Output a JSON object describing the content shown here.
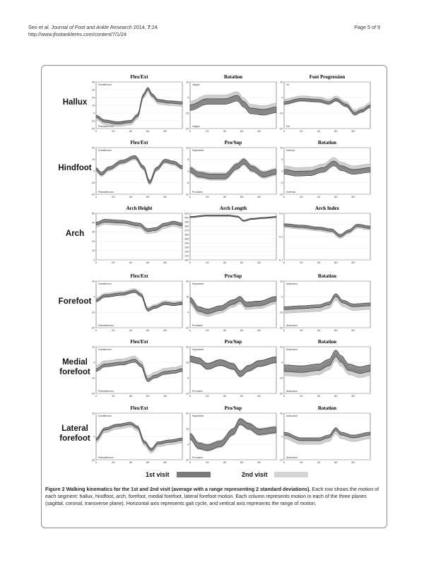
{
  "header": {
    "citation_authors": "Seo",
    "citation_etal": " et al. ",
    "citation_journal": "Journal of Foot and Ankle Research",
    "citation_year": " 2014, ",
    "citation_volume": "7",
    "citation_article": ":24",
    "url": "http://www.jfootankleres.com/content/7/1/24",
    "page": "Page 5 of 9"
  },
  "colors": {
    "visit1": "#7a7a7a",
    "visit2": "#cfcfcf",
    "line": "#3a3a3a"
  },
  "rows": [
    {
      "label": [
        "Hallux"
      ],
      "panels": [
        {
          "title": "Flex/Ext",
          "yticks": [
            "40",
            "30",
            "20",
            "10",
            "0",
            "-10",
            "-20"
          ],
          "top": "Dorsiflexion",
          "bottom": "Plantarflexion",
          "shape": [
            [
              0,
              0.74
            ],
            [
              0.1,
              0.84
            ],
            [
              0.25,
              0.88
            ],
            [
              0.4,
              0.85
            ],
            [
              0.48,
              0.72
            ],
            [
              0.55,
              0.28
            ],
            [
              0.6,
              0.14
            ],
            [
              0.65,
              0.28
            ],
            [
              0.72,
              0.4
            ],
            [
              0.85,
              0.43
            ],
            [
              1,
              0.45
            ]
          ],
          "w1": 0.05,
          "w2": 0.09,
          "d2": 0.03
        },
        {
          "title": "Rotation",
          "yticks": [
            "10",
            "0",
            "-10",
            "-20"
          ],
          "top": "Valgus",
          "bottom": "Valgus",
          "shape": [
            [
              0,
              0.55
            ],
            [
              0.2,
              0.42
            ],
            [
              0.4,
              0.42
            ],
            [
              0.55,
              0.35
            ],
            [
              0.62,
              0.48
            ],
            [
              0.7,
              0.62
            ],
            [
              0.85,
              0.65
            ],
            [
              1,
              0.6
            ]
          ],
          "w1": 0.12,
          "w2": 0.16,
          "d2": -0.06
        },
        {
          "title": "Foot Progression",
          "yticks": [
            "10",
            "0",
            "-10",
            "-20"
          ],
          "top": "Int",
          "bottom": "Ext",
          "shape": [
            [
              0,
              0.45
            ],
            [
              0.2,
              0.38
            ],
            [
              0.4,
              0.4
            ],
            [
              0.52,
              0.45
            ],
            [
              0.6,
              0.38
            ],
            [
              0.72,
              0.5
            ],
            [
              0.82,
              0.68
            ],
            [
              0.9,
              0.62
            ],
            [
              1,
              0.52
            ]
          ],
          "w1": 0.05,
          "w2": 0.12,
          "d2": -0.02
        }
      ]
    },
    {
      "label": [
        "Hindfoot"
      ],
      "panels": [
        {
          "title": "Flex/Ext",
          "yticks": [
            "20",
            "10",
            "0",
            "-10",
            "-20"
          ],
          "top": "Dorsiflexion",
          "bottom": "Plantarflexion",
          "shape": [
            [
              0,
              0.46
            ],
            [
              0.06,
              0.56
            ],
            [
              0.15,
              0.44
            ],
            [
              0.3,
              0.3
            ],
            [
              0.45,
              0.2
            ],
            [
              0.55,
              0.42
            ],
            [
              0.62,
              0.74
            ],
            [
              0.7,
              0.45
            ],
            [
              0.8,
              0.28
            ],
            [
              0.9,
              0.32
            ],
            [
              1,
              0.42
            ]
          ],
          "w1": 0.06,
          "w2": 0.08,
          "d2": 0.02
        },
        {
          "title": "Pro/Sup",
          "yticks": [
            "10",
            "5",
            "0",
            "-5",
            "-10"
          ],
          "top": "Supinated",
          "bottom": "Pronated",
          "shape": [
            [
              0,
              0.48
            ],
            [
              0.1,
              0.58
            ],
            [
              0.25,
              0.62
            ],
            [
              0.4,
              0.62
            ],
            [
              0.55,
              0.4
            ],
            [
              0.62,
              0.3
            ],
            [
              0.72,
              0.45
            ],
            [
              0.85,
              0.58
            ],
            [
              1,
              0.52
            ]
          ],
          "w1": 0.1,
          "w2": 0.16,
          "d2": 0
        },
        {
          "title": "Rotation",
          "yticks": [
            "10",
            "5",
            "0",
            "-5",
            "-10"
          ],
          "top": "Internal",
          "bottom": "External",
          "shape": [
            [
              0,
              0.52
            ],
            [
              0.15,
              0.56
            ],
            [
              0.3,
              0.55
            ],
            [
              0.45,
              0.48
            ],
            [
              0.58,
              0.34
            ],
            [
              0.66,
              0.44
            ],
            [
              0.8,
              0.52
            ],
            [
              1,
              0.48
            ]
          ],
          "w1": 0.1,
          "w2": 0.14,
          "d2": -0.06
        }
      ]
    },
    {
      "label": [
        "Arch"
      ],
      "panels": [
        {
          "title": "Arch Height",
          "yticks": [
            "50",
            "40",
            "30",
            "20",
            "10",
            "0"
          ],
          "top": "",
          "bottom": "",
          "shape": [
            [
              0,
              0.22
            ],
            [
              0.1,
              0.16
            ],
            [
              0.3,
              0.18
            ],
            [
              0.5,
              0.24
            ],
            [
              0.6,
              0.36
            ],
            [
              0.68,
              0.34
            ],
            [
              0.8,
              0.24
            ],
            [
              0.9,
              0.2
            ],
            [
              1,
              0.24
            ]
          ],
          "w1": 0.06,
          "w2": 0.08,
          "d2": 0.04
        },
        {
          "title": "Arch Length",
          "yticks": [
            "210",
            "200",
            "190",
            "180",
            "170",
            "160",
            "150",
            "140",
            "130",
            "120",
            "110",
            "100"
          ],
          "top": "",
          "bottom": "",
          "shape": [
            [
              0,
              0.08
            ],
            [
              0.2,
              0.05
            ],
            [
              0.45,
              0.05
            ],
            [
              0.55,
              0.07
            ],
            [
              0.62,
              0.16
            ],
            [
              0.72,
              0.12
            ],
            [
              0.85,
              0.1
            ],
            [
              1,
              0.08
            ]
          ],
          "w1": 0.02,
          "w2": 0.03,
          "d2": 0
        },
        {
          "title": "Arch Index",
          "yticks": [
            "0.3",
            "",
            "0.2",
            "",
            "0.1"
          ],
          "top": "",
          "bottom": "",
          "shape": [
            [
              0,
              0.25
            ],
            [
              0.2,
              0.28
            ],
            [
              0.4,
              0.32
            ],
            [
              0.55,
              0.36
            ],
            [
              0.65,
              0.48
            ],
            [
              0.75,
              0.38
            ],
            [
              0.85,
              0.26
            ],
            [
              1,
              0.3
            ]
          ],
          "w1": 0.05,
          "w2": 0.08,
          "d2": 0.02
        }
      ]
    },
    {
      "label": [
        "Forefoot"
      ],
      "panels": [
        {
          "title": "Flex/Ext",
          "yticks": [
            "10",
            "0",
            "-10",
            "-20"
          ],
          "top": "Dorsiflexion",
          "bottom": "Plantarflexion",
          "shape": [
            [
              0,
              0.42
            ],
            [
              0.1,
              0.32
            ],
            [
              0.3,
              0.28
            ],
            [
              0.45,
              0.22
            ],
            [
              0.52,
              0.3
            ],
            [
              0.6,
              0.62
            ],
            [
              0.68,
              0.56
            ],
            [
              0.8,
              0.48
            ],
            [
              0.9,
              0.5
            ],
            [
              1,
              0.48
            ]
          ],
          "w1": 0.05,
          "w2": 0.08,
          "d2": -0.02
        },
        {
          "title": "Pro/Sup",
          "yticks": [
            "20",
            "10",
            "0",
            "-10"
          ],
          "top": "Supinated",
          "bottom": "Pronated",
          "shape": [
            [
              0,
              0.4
            ],
            [
              0.1,
              0.6
            ],
            [
              0.2,
              0.65
            ],
            [
              0.35,
              0.58
            ],
            [
              0.5,
              0.45
            ],
            [
              0.58,
              0.38
            ],
            [
              0.65,
              0.5
            ],
            [
              0.8,
              0.48
            ],
            [
              1,
              0.38
            ]
          ],
          "w1": 0.1,
          "w2": 0.16,
          "d2": 0.03
        },
        {
          "title": "Rotation",
          "yticks": [
            "10",
            "0",
            "-10",
            "-20"
          ],
          "top": "Adduction",
          "bottom": "Abduction",
          "shape": [
            [
              0,
              0.58
            ],
            [
              0.2,
              0.56
            ],
            [
              0.4,
              0.54
            ],
            [
              0.52,
              0.48
            ],
            [
              0.6,
              0.3
            ],
            [
              0.68,
              0.44
            ],
            [
              0.8,
              0.52
            ],
            [
              1,
              0.5
            ]
          ],
          "w1": 0.06,
          "w2": 0.1,
          "d2": 0.06
        }
      ]
    },
    {
      "label": [
        "Medial",
        "forefoot"
      ],
      "panels": [
        {
          "title": "Flex/Ext",
          "yticks": [
            "10",
            "0",
            "-10",
            "-20"
          ],
          "top": "Dorsiflexion",
          "bottom": "Plantarflexion",
          "shape": [
            [
              0,
              0.5
            ],
            [
              0.1,
              0.4
            ],
            [
              0.3,
              0.36
            ],
            [
              0.45,
              0.3
            ],
            [
              0.52,
              0.4
            ],
            [
              0.6,
              0.72
            ],
            [
              0.68,
              0.64
            ],
            [
              0.8,
              0.56
            ],
            [
              0.9,
              0.54
            ],
            [
              1,
              0.5
            ]
          ],
          "w1": 0.06,
          "w2": 0.08,
          "d2": -0.06
        },
        {
          "title": "Pro/Sup",
          "yticks": [
            "20",
            "10",
            "0",
            "-10"
          ],
          "top": "Supinated",
          "bottom": "Pronated",
          "shape": [
            [
              0,
              0.26
            ],
            [
              0.1,
              0.3
            ],
            [
              0.2,
              0.42
            ],
            [
              0.35,
              0.34
            ],
            [
              0.5,
              0.42
            ],
            [
              0.58,
              0.58
            ],
            [
              0.68,
              0.46
            ],
            [
              0.8,
              0.36
            ],
            [
              1,
              0.28
            ]
          ],
          "w1": 0.12,
          "w2": 0.14,
          "d2": 0
        },
        {
          "title": "Rotation",
          "yticks": [
            "10",
            "0",
            "-10",
            "-20"
          ],
          "top": "Adduction",
          "bottom": "Abduction",
          "shape": [
            [
              0,
              0.46
            ],
            [
              0.2,
              0.48
            ],
            [
              0.4,
              0.44
            ],
            [
              0.52,
              0.34
            ],
            [
              0.6,
              0.14
            ],
            [
              0.66,
              0.26
            ],
            [
              0.75,
              0.44
            ],
            [
              0.88,
              0.5
            ],
            [
              1,
              0.46
            ]
          ],
          "w1": 0.14,
          "w2": 0.16,
          "d2": 0.08
        }
      ]
    },
    {
      "label": [
        "Lateral",
        "forefoot"
      ],
      "panels": [
        {
          "title": "Flex/Ext",
          "yticks": [
            "10",
            "0",
            "-10"
          ],
          "top": "Dorsiflexion",
          "bottom": "Plantarflexion",
          "shape": [
            [
              0,
              0.56
            ],
            [
              0.1,
              0.34
            ],
            [
              0.25,
              0.26
            ],
            [
              0.4,
              0.22
            ],
            [
              0.48,
              0.3
            ],
            [
              0.56,
              0.62
            ],
            [
              0.64,
              0.78
            ],
            [
              0.72,
              0.64
            ],
            [
              0.85,
              0.6
            ],
            [
              1,
              0.56
            ]
          ],
          "w1": 0.05,
          "w2": 0.08,
          "d2": 0.04
        },
        {
          "title": "Pro/Sup",
          "yticks": [
            "20",
            "10",
            "0",
            "-10"
          ],
          "top": "Supinated",
          "bottom": "Pronated",
          "shape": [
            [
              0,
              0.5
            ],
            [
              0.1,
              0.7
            ],
            [
              0.2,
              0.74
            ],
            [
              0.35,
              0.66
            ],
            [
              0.5,
              0.4
            ],
            [
              0.58,
              0.18
            ],
            [
              0.68,
              0.28
            ],
            [
              0.8,
              0.4
            ],
            [
              1,
              0.36
            ]
          ],
          "w1": 0.12,
          "w2": 0.16,
          "d2": 0
        },
        {
          "title": "Rotation",
          "yticks": [
            "10",
            "0",
            "-10"
          ],
          "top": "Adduction",
          "bottom": "Abduction",
          "shape": [
            [
              0,
              0.44
            ],
            [
              0.2,
              0.56
            ],
            [
              0.4,
              0.56
            ],
            [
              0.52,
              0.5
            ],
            [
              0.6,
              0.34
            ],
            [
              0.66,
              0.44
            ],
            [
              0.8,
              0.5
            ],
            [
              1,
              0.44
            ]
          ],
          "w1": 0.06,
          "w2": 0.1,
          "d2": 0.06
        }
      ]
    }
  ],
  "xticks": [
    "0",
    "20",
    "40",
    "60",
    "80"
  ],
  "legend": {
    "visit1": "1st visit",
    "visit2": "2nd visit"
  },
  "caption": {
    "label": "Figure 2",
    "bold": "Walking kinematics for the 1st and 2nd visit (average with a range representing 2 standard deviations).",
    "text": " Each row shows the motion of each segment: hallux, hindfoot, arch, forefoot, medial forefoot, lateral forefoot motion. Each column represents motion in each of the three planes (sagittal, coronal, transverse plane). Horizontal axis represents gait cycle, and vertical axis represents the range of motion."
  }
}
